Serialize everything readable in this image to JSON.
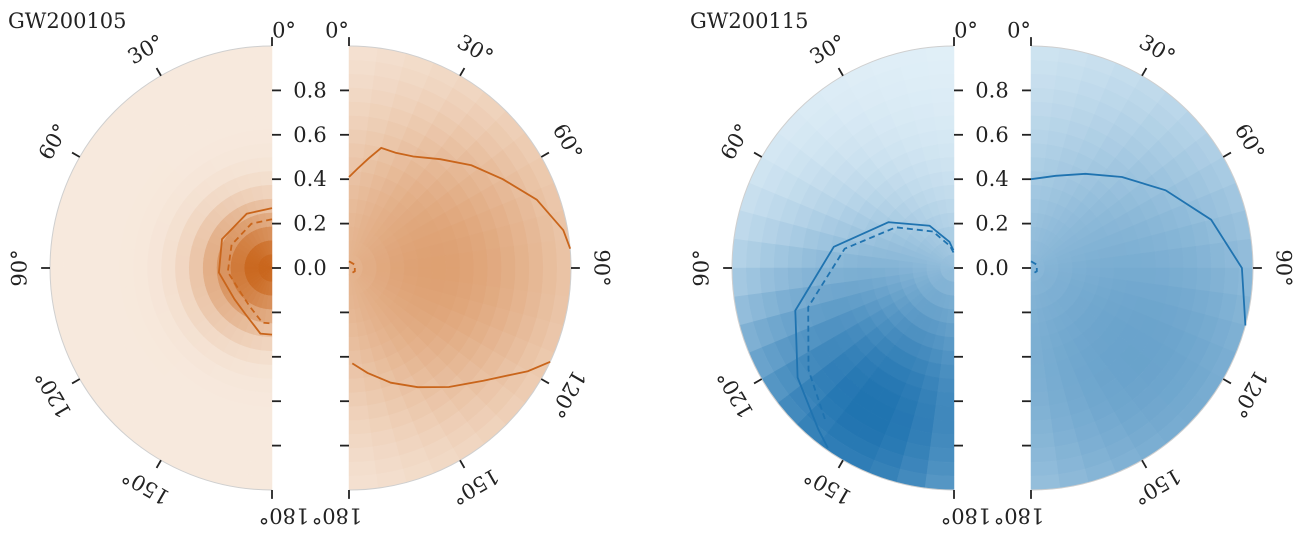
{
  "chart_data": {
    "type": "heatmap",
    "polar": true,
    "layout": "two figures, each a pair of half-disk polar posterior densities (left: primary spin, right: secondary spin)",
    "radial_ticks": [
      "0.8",
      "0.6",
      "0.4",
      "0.2",
      "0.0"
    ],
    "angular_ticks": [
      "0°",
      "30°",
      "60°",
      "90°",
      "120°",
      "150°",
      "180°"
    ],
    "theta_range_deg": [
      0,
      180
    ],
    "r_range": [
      0,
      1
    ],
    "panels": [
      {
        "title": "GW200105",
        "color": "#c9651b",
        "light_color": "#f7e9dd",
        "left": {
          "blob": {
            "theta_deg": 90,
            "r": 0.05,
            "strength": 1.0,
            "width": 0.18
          },
          "contour_solid": {
            "theta_deg": [
              0,
              25,
              60,
              95,
              130,
              150,
              170,
              180
            ],
            "r": [
              0.27,
              0.27,
              0.26,
              0.24,
              0.22,
              0.24,
              0.3,
              0.3
            ]
          },
          "contour_dashed": {
            "theta_deg": [
              0,
              25,
              60,
              95,
              130,
              150,
              170,
              180
            ],
            "r": [
              0.22,
              0.22,
              0.21,
              0.2,
              0.18,
              0.2,
              0.25,
              0.25
            ]
          }
        },
        "right": {
          "blob": {
            "theta_deg": 90,
            "r": 0.4,
            "strength": 0.55,
            "width": 0.5
          },
          "contour_solid": [
            {
              "theta_deg": [
                85,
                80,
                70,
                60,
                50,
                40,
                30,
                22,
                15,
                10,
                5,
                0
              ],
              "r": [
                1.0,
                0.98,
                0.9,
                0.8,
                0.72,
                0.64,
                0.58,
                0.56,
                0.56,
                0.5,
                0.45,
                0.41
              ]
            },
            {
              "theta_deg": [
                115,
                120,
                130,
                140,
                150,
                160,
                170,
                178
              ],
              "r": [
                1.0,
                0.93,
                0.79,
                0.7,
                0.62,
                0.55,
                0.48,
                0.43
              ]
            }
          ],
          "contour_dashed": {
            "theta_deg": [
              0,
              60,
              120,
              180
            ],
            "r": [
              0.03,
              0.03,
              0.03,
              0.03
            ]
          }
        }
      },
      {
        "title": "GW200115",
        "color": "#1f73b0",
        "light_color": "#e2f0f8",
        "left": {
          "blob": {
            "theta_deg": 150,
            "r": 0.75,
            "strength": 1.0,
            "width": 0.55
          },
          "contour_solid": {
            "theta_deg": [
              2,
              10,
              30,
              55,
              80,
              105,
              125,
              140,
              145
            ],
            "r": [
              0.08,
              0.12,
              0.22,
              0.36,
              0.55,
              0.74,
              0.86,
              0.95,
              0.99
            ]
          },
          "contour_dashed": {
            "theta_deg": [
              2,
              10,
              30,
              55,
              80,
              105,
              125,
              140
            ],
            "r": [
              0.07,
              0.1,
              0.19,
              0.32,
              0.5,
              0.68,
              0.8,
              0.9
            ]
          }
        },
        "right": {
          "blob": {
            "theta_deg": 130,
            "r": 0.6,
            "strength": 0.62,
            "width": 0.75
          },
          "contour_solid": {
            "theta_deg": [
              0,
              15,
              30,
              45,
              60,
              75,
              90,
              105
            ],
            "r": [
              0.4,
              0.43,
              0.49,
              0.58,
              0.7,
              0.84,
              0.95,
              1.0
            ]
          },
          "contour_dashed": {
            "theta_deg": [
              0,
              60,
              120,
              180
            ],
            "r": [
              0.03,
              0.03,
              0.03,
              0.03
            ]
          }
        }
      }
    ]
  }
}
